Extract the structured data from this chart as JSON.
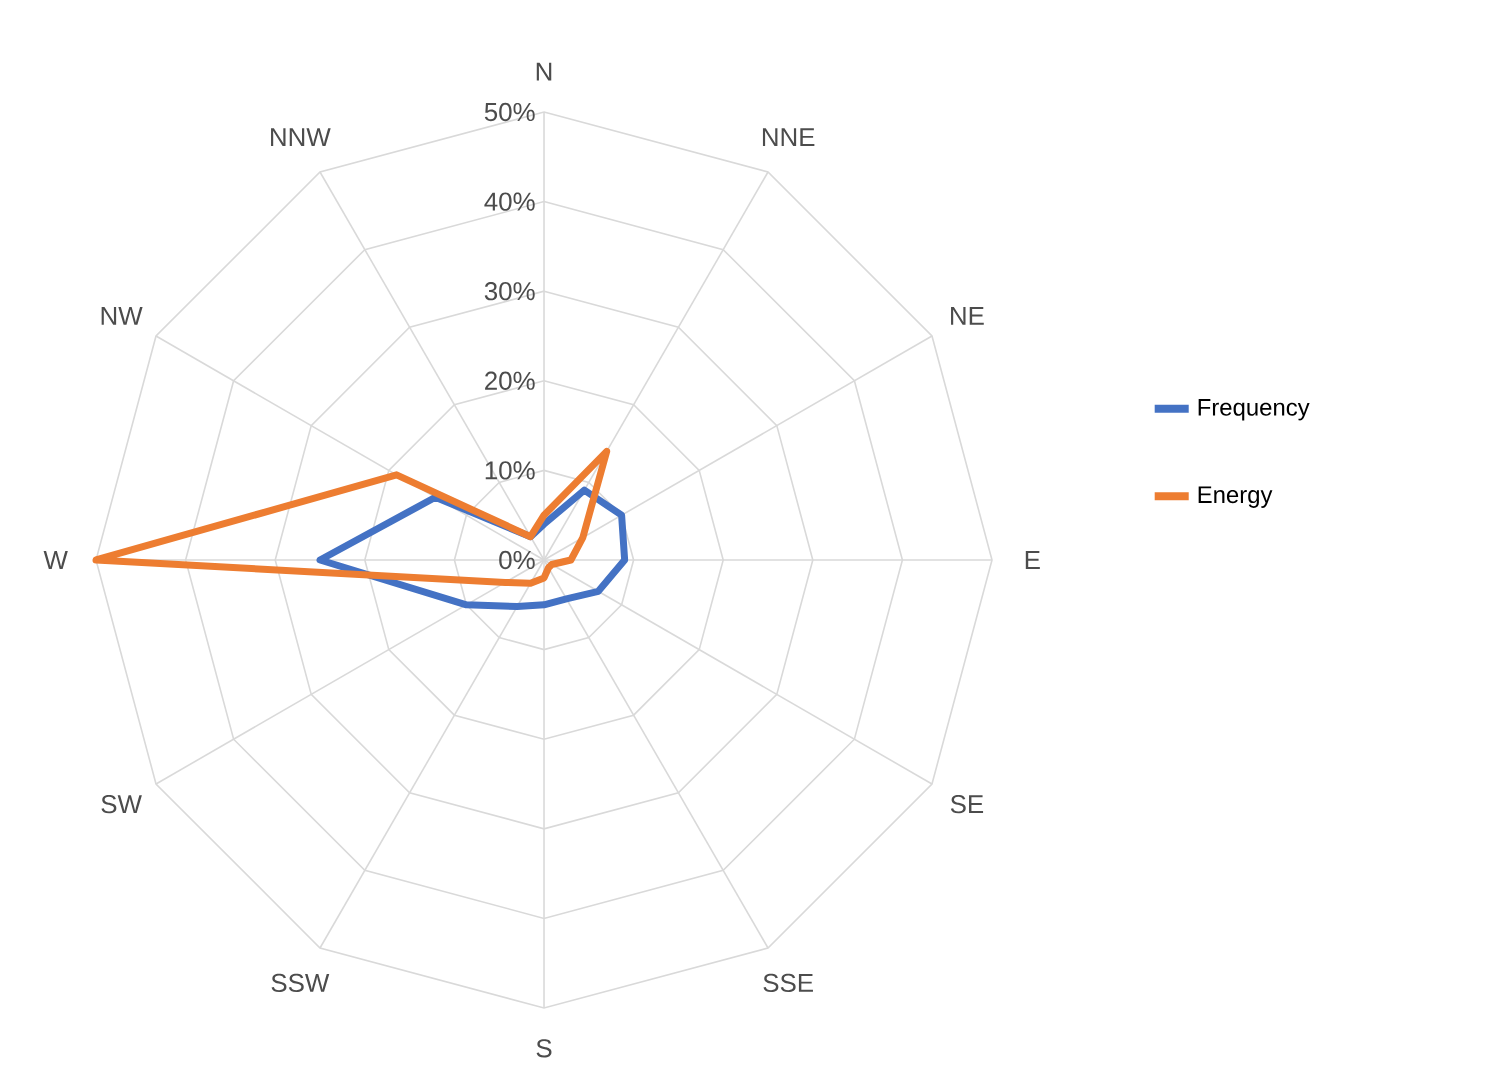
{
  "chart_data": {
    "type": "radar",
    "categories": [
      "N",
      "NNE",
      "NE",
      "E",
      "SE",
      "SSE",
      "S",
      "SSW",
      "SW",
      "W",
      "NW",
      "NNW"
    ],
    "series": [
      {
        "name": "Frequency",
        "color": "#4472c4",
        "values": [
          4,
          9,
          10,
          9,
          7,
          5,
          5,
          6,
          10,
          25,
          14,
          3
        ]
      },
      {
        "name": "Energy",
        "color": "#ed7d31",
        "values": [
          5,
          14,
          5,
          3,
          1,
          1,
          2,
          3,
          5,
          50,
          19,
          3
        ]
      }
    ],
    "ylim": [
      0,
      50
    ],
    "yticks": [
      {
        "value": 0,
        "label": "0%"
      },
      {
        "value": 10,
        "label": "10%"
      },
      {
        "value": 20,
        "label": "20%"
      },
      {
        "value": 30,
        "label": "30%"
      },
      {
        "value": 40,
        "label": "40%"
      },
      {
        "value": 50,
        "label": "50%"
      }
    ],
    "grid": true,
    "legend": "right",
    "marker": "none",
    "line_style": "solid"
  }
}
